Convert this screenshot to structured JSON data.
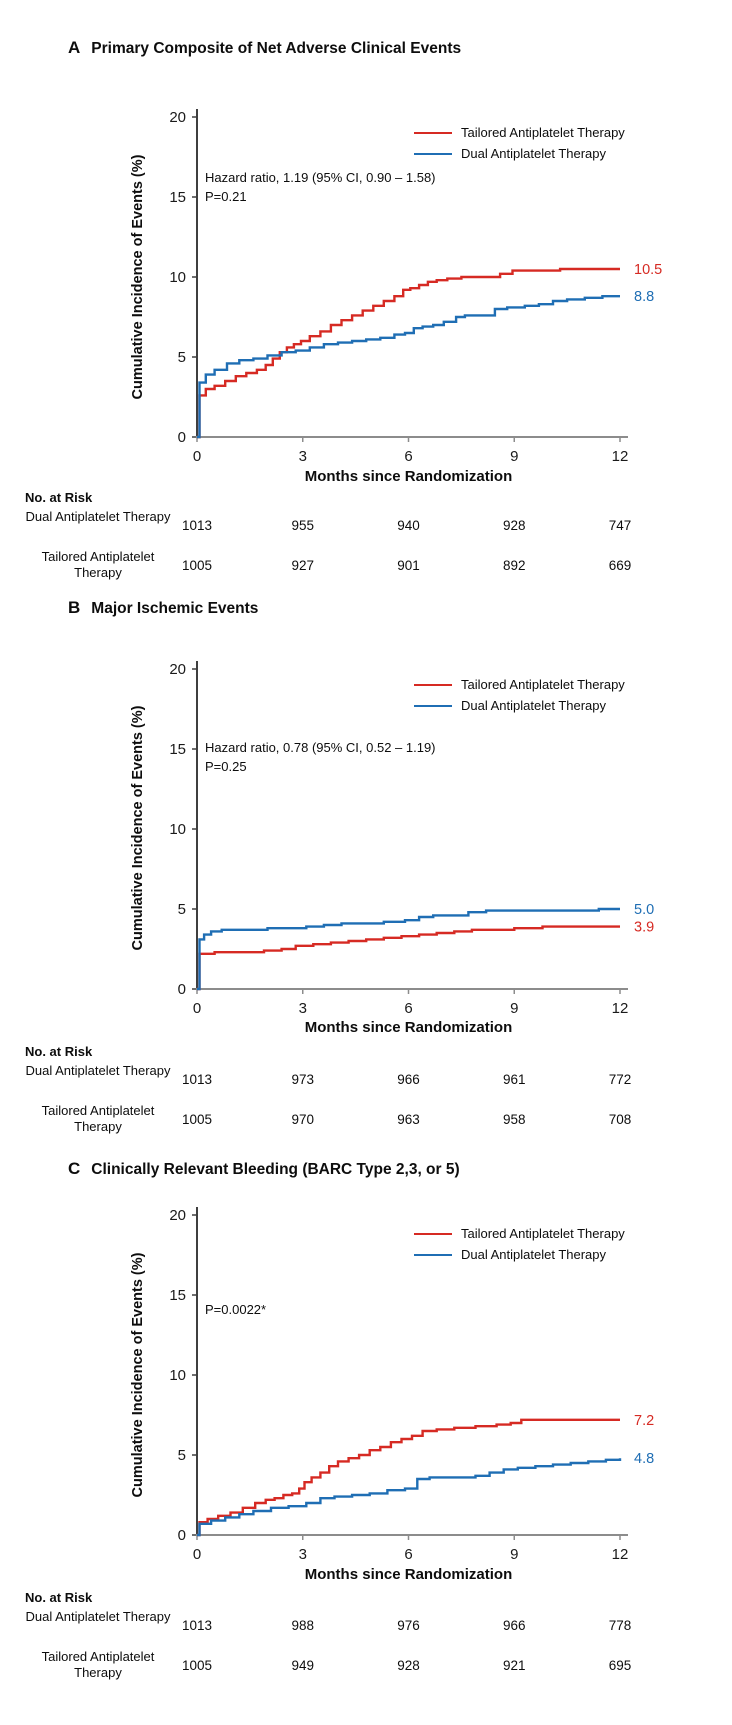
{
  "chart_data": [
    {
      "type": "line",
      "step": true,
      "panel_letter": "A",
      "title": "Primary Composite of Net Adverse Clinical Events",
      "xlabel": "Months since Randomization",
      "ylabel": "Cumulative Incidence of Events (%)",
      "xlim": [
        0,
        12
      ],
      "ylim": [
        0,
        20
      ],
      "xticks": [
        0,
        3,
        6,
        9,
        12
      ],
      "yticks": [
        0,
        5,
        10,
        15,
        20
      ],
      "grid": false,
      "legend_position": "top-right",
      "annotation": [
        "Hazard ratio, 1.19 (95% CI, 0.90 – 1.58)",
        "P=0.21"
      ],
      "series": [
        {
          "name": "Tailored Antiplatelet Therapy",
          "color": "#d62a23",
          "end_label": "10.5",
          "x": [
            0,
            0.07,
            0.25,
            0.5,
            0.8,
            1.1,
            1.4,
            1.7,
            1.95,
            2.15,
            2.35,
            2.55,
            2.75,
            2.95,
            3.2,
            3.5,
            3.8,
            4.1,
            4.4,
            4.7,
            5.0,
            5.3,
            5.6,
            5.85,
            6.05,
            6.3,
            6.55,
            6.8,
            7.1,
            7.5,
            8.0,
            8.6,
            8.95,
            9.2,
            9.6,
            10.3,
            12
          ],
          "y": [
            0,
            2.6,
            3.0,
            3.2,
            3.5,
            3.8,
            4.0,
            4.2,
            4.5,
            4.9,
            5.3,
            5.6,
            5.8,
            6.0,
            6.3,
            6.6,
            7.0,
            7.3,
            7.6,
            7.9,
            8.2,
            8.5,
            8.8,
            9.2,
            9.3,
            9.5,
            9.7,
            9.8,
            9.9,
            10.0,
            10.0,
            10.2,
            10.4,
            10.4,
            10.4,
            10.5,
            10.5
          ]
        },
        {
          "name": "Dual Antiplatelet Therapy",
          "color": "#1f6eb4",
          "end_label": "8.8",
          "x": [
            0,
            0.07,
            0.25,
            0.5,
            0.85,
            1.2,
            1.6,
            2.0,
            2.4,
            2.8,
            3.2,
            3.6,
            4.0,
            4.4,
            4.8,
            5.2,
            5.6,
            5.9,
            6.15,
            6.4,
            6.7,
            7.0,
            7.35,
            7.6,
            8.1,
            8.45,
            8.8,
            9.3,
            9.7,
            10.1,
            10.5,
            11.0,
            11.5,
            12
          ],
          "y": [
            0,
            3.4,
            3.9,
            4.2,
            4.6,
            4.8,
            4.9,
            5.1,
            5.3,
            5.4,
            5.6,
            5.8,
            5.9,
            6.0,
            6.1,
            6.2,
            6.4,
            6.5,
            6.8,
            6.9,
            7.0,
            7.2,
            7.5,
            7.6,
            7.6,
            8.0,
            8.1,
            8.2,
            8.3,
            8.5,
            8.6,
            8.7,
            8.8,
            8.8
          ]
        }
      ],
      "risk_table": {
        "header": "No. at Risk",
        "columns": [
          0,
          3,
          6,
          9,
          12
        ],
        "rows": [
          {
            "label": "Dual Antiplatelet Therapy",
            "values": [
              1013,
              955,
              940,
              928,
              747
            ]
          },
          {
            "label": "Tailored Antiplatelet Therapy",
            "values": [
              1005,
              927,
              901,
              892,
              669
            ]
          }
        ]
      }
    },
    {
      "type": "line",
      "step": true,
      "panel_letter": "B",
      "title": "Major Ischemic Events",
      "xlabel": "Months since Randomization",
      "ylabel": "Cumulative Incidence of Events (%)",
      "xlim": [
        0,
        12
      ],
      "ylim": [
        0,
        20
      ],
      "xticks": [
        0,
        3,
        6,
        9,
        12
      ],
      "yticks": [
        0,
        5,
        10,
        15,
        20
      ],
      "grid": false,
      "legend_position": "top-right",
      "annotation": [
        "Hazard ratio, 0.78 (95% CI, 0.52 – 1.19)",
        "P=0.25"
      ],
      "series": [
        {
          "name": "Tailored Antiplatelet Therapy",
          "color": "#d62a23",
          "end_label": "3.9",
          "x": [
            0,
            0.07,
            0.5,
            1.3,
            1.9,
            2.4,
            2.8,
            3.3,
            3.8,
            4.3,
            4.8,
            5.3,
            5.8,
            6.3,
            6.8,
            7.3,
            7.8,
            8.4,
            9.0,
            9.8,
            10.6,
            12
          ],
          "y": [
            0,
            2.2,
            2.3,
            2.3,
            2.4,
            2.5,
            2.7,
            2.8,
            2.9,
            3.0,
            3.1,
            3.2,
            3.3,
            3.4,
            3.5,
            3.6,
            3.7,
            3.7,
            3.8,
            3.9,
            3.9,
            3.9
          ]
        },
        {
          "name": "Dual Antiplatelet Therapy",
          "color": "#1f6eb4",
          "end_label": "5.0",
          "x": [
            0,
            0.07,
            0.2,
            0.4,
            0.7,
            1.2,
            2.0,
            2.6,
            3.1,
            3.6,
            4.1,
            4.7,
            5.3,
            5.9,
            6.3,
            6.7,
            7.2,
            7.7,
            8.2,
            8.8,
            9.5,
            10.5,
            11.4,
            12
          ],
          "y": [
            0,
            3.1,
            3.4,
            3.6,
            3.7,
            3.7,
            3.8,
            3.8,
            3.9,
            4.0,
            4.1,
            4.1,
            4.2,
            4.3,
            4.5,
            4.6,
            4.6,
            4.8,
            4.9,
            4.9,
            4.9,
            4.9,
            5.0,
            5.0
          ]
        }
      ],
      "risk_table": {
        "header": "No. at Risk",
        "columns": [
          0,
          3,
          6,
          9,
          12
        ],
        "rows": [
          {
            "label": "Dual Antiplatelet Therapy",
            "values": [
              1013,
              973,
              966,
              961,
              772
            ]
          },
          {
            "label": "Tailored Antiplatelet Therapy",
            "values": [
              1005,
              970,
              963,
              958,
              708
            ]
          }
        ]
      }
    },
    {
      "type": "line",
      "step": true,
      "panel_letter": "C",
      "title": "Clinically Relevant Bleeding (BARC Type 2,3, or 5)",
      "xlabel": "Months since Randomization",
      "ylabel": "Cumulative Incidence of Events (%)",
      "xlim": [
        0,
        12
      ],
      "ylim": [
        0,
        20
      ],
      "xticks": [
        0,
        3,
        6,
        9,
        12
      ],
      "yticks": [
        0,
        5,
        10,
        15,
        20
      ],
      "grid": false,
      "legend_position": "top-right",
      "annotation": [
        "P=0.0022*"
      ],
      "series": [
        {
          "name": "Tailored Antiplatelet Therapy",
          "color": "#d62a23",
          "end_label": "7.2",
          "x": [
            0,
            0.07,
            0.3,
            0.6,
            0.95,
            1.3,
            1.65,
            1.95,
            2.2,
            2.45,
            2.7,
            2.9,
            3.05,
            3.25,
            3.5,
            3.75,
            4.0,
            4.3,
            4.6,
            4.9,
            5.2,
            5.5,
            5.8,
            6.1,
            6.4,
            6.8,
            7.3,
            7.9,
            8.5,
            8.9,
            9.2,
            12
          ],
          "y": [
            0,
            0.8,
            1.0,
            1.2,
            1.4,
            1.7,
            2.0,
            2.2,
            2.3,
            2.5,
            2.6,
            2.9,
            3.3,
            3.6,
            3.9,
            4.3,
            4.6,
            4.8,
            5.0,
            5.3,
            5.5,
            5.8,
            6.0,
            6.2,
            6.5,
            6.6,
            6.7,
            6.8,
            6.9,
            7.0,
            7.2,
            7.2
          ]
        },
        {
          "name": "Dual Antiplatelet Therapy",
          "color": "#1f6eb4",
          "end_label": "4.8",
          "x": [
            0,
            0.07,
            0.4,
            0.8,
            1.2,
            1.6,
            2.1,
            2.6,
            3.1,
            3.5,
            3.9,
            4.4,
            4.9,
            5.4,
            5.9,
            6.25,
            6.6,
            7.3,
            7.9,
            8.3,
            8.7,
            9.1,
            9.6,
            10.1,
            10.6,
            11.1,
            11.6,
            12
          ],
          "y": [
            0,
            0.7,
            0.9,
            1.1,
            1.3,
            1.5,
            1.7,
            1.8,
            2.0,
            2.3,
            2.4,
            2.5,
            2.6,
            2.8,
            2.9,
            3.5,
            3.6,
            3.6,
            3.7,
            3.9,
            4.1,
            4.2,
            4.3,
            4.4,
            4.5,
            4.6,
            4.7,
            4.8
          ]
        }
      ],
      "risk_table": {
        "header": "No. at Risk",
        "columns": [
          0,
          3,
          6,
          9,
          12
        ],
        "rows": [
          {
            "label": "Dual Antiplatelet Therapy",
            "values": [
              1013,
              988,
              976,
              966,
              778
            ]
          },
          {
            "label": "Tailored Antiplatelet Therapy",
            "values": [
              1005,
              949,
              928,
              921,
              695
            ]
          }
        ]
      }
    }
  ]
}
